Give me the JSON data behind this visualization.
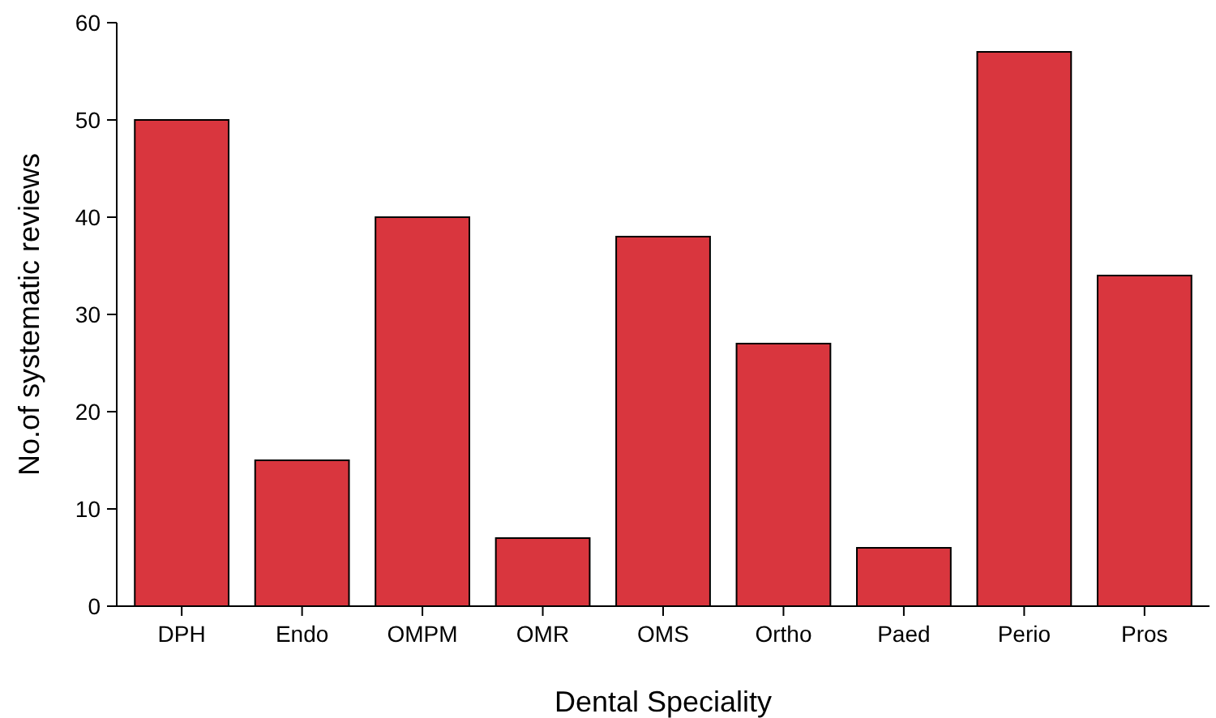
{
  "chart_data": {
    "type": "bar",
    "xlabel": "Dental Speciality",
    "ylabel": "No.of systematic reviews",
    "categories": [
      "DPH",
      "Endo",
      "OMPM",
      "OMR",
      "OMS",
      "Ortho",
      "Paed",
      "Perio",
      "Pros"
    ],
    "values": [
      50,
      15,
      40,
      7,
      38,
      27,
      6,
      57,
      34
    ],
    "color": "#d9363e",
    "ylim": [
      0,
      60
    ],
    "yticks": [
      0,
      10,
      20,
      30,
      40,
      50,
      60
    ],
    "grid": false
  }
}
